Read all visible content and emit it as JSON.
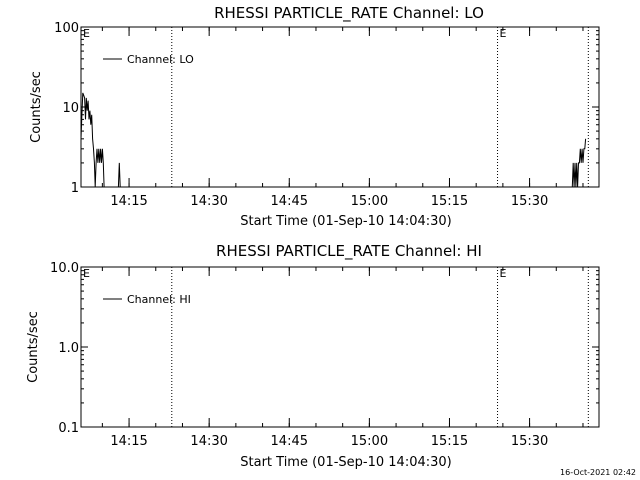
{
  "footer": {
    "timestamp": "16-Oct-2021 02:42"
  },
  "chart_data": [
    {
      "type": "line",
      "title": "RHESSI PARTICLE_RATE Channel: LO",
      "xlabel": "Start Time (01-Sep-10 14:04:30)",
      "ylabel": "Counts/sec",
      "yscale": "log",
      "ylim": [
        1,
        100
      ],
      "xlim": [
        "14:06:00",
        "15:43:00"
      ],
      "ytick_labels": [
        "1",
        "10",
        "100"
      ],
      "yticks": [
        1,
        10,
        100
      ],
      "xtick_labels": [
        "14:15",
        "14:30",
        "14:45",
        "15:00",
        "15:15",
        "15:30"
      ],
      "xticks": [
        "14:15",
        "14:30",
        "14:45",
        "15:00",
        "15:15",
        "15:30"
      ],
      "vlines": [
        "14:23:00",
        "15:24:00",
        "15:41:00"
      ],
      "flags": [
        {
          "label": "E",
          "time": "14:06:00"
        },
        {
          "label": "E",
          "time": "15:24:00"
        }
      ],
      "legend": {
        "label": "Channel: LO",
        "position": "top-left"
      },
      "series": [
        {
          "name": "Channel: LO",
          "segments": [
            {
              "x": [
                "14:06:00",
                "14:06:10",
                "14:06:20",
                "14:06:30",
                "14:06:40",
                "14:06:50",
                "14:07:00",
                "14:07:10",
                "14:07:20",
                "14:07:30",
                "14:07:40",
                "14:07:50",
                "14:08:00",
                "14:08:10",
                "14:08:20",
                "14:08:30",
                "14:08:40",
                "14:08:50",
                "14:09:00",
                "14:09:10",
                "14:09:20",
                "14:09:30",
                "14:09:40",
                "14:09:50",
                "14:10:00",
                "14:10:10",
                "14:10:20",
                "14:10:30",
                "14:10:40",
                "14:10:50",
                "14:11:00",
                "14:11:10",
                "14:11:20"
              ],
              "y": [
                4,
                8,
                15,
                14,
                13,
                7,
                13,
                9,
                12,
                7,
                9,
                6,
                8,
                4,
                3,
                2,
                1,
                2,
                3,
                2,
                3,
                2,
                3,
                2,
                3,
                2,
                1,
                1,
                1,
                1,
                1,
                1,
                1
              ]
            },
            {
              "x": [
                "14:13:00",
                "14:13:10",
                "14:13:20",
                "14:13:30"
              ],
              "y": [
                1,
                2,
                1,
                1
              ]
            },
            {
              "x": [
                "15:38:00",
                "15:38:10",
                "15:38:20",
                "15:38:30",
                "15:38:40",
                "15:38:50",
                "15:39:00",
                "15:39:10",
                "15:39:20",
                "15:39:30",
                "15:39:40",
                "15:39:50",
                "15:40:00",
                "15:40:10",
                "15:40:20",
                "15:40:30"
              ],
              "y": [
                1,
                2,
                1,
                2,
                1,
                2,
                1,
                2,
                2,
                3,
                2,
                3,
                2,
                3,
                3,
                4
              ]
            }
          ]
        }
      ]
    },
    {
      "type": "line",
      "title": "RHESSI PARTICLE_RATE Channel: HI",
      "xlabel": "Start Time (01-Sep-10 14:04:30)",
      "ylabel": "Counts/sec",
      "yscale": "log",
      "ylim": [
        0.1,
        10
      ],
      "xlim": [
        "14:06:00",
        "15:43:00"
      ],
      "ytick_labels": [
        "0.1",
        "1.0",
        "10.0"
      ],
      "yticks": [
        0.1,
        1,
        10
      ],
      "xtick_labels": [
        "14:15",
        "14:30",
        "14:45",
        "15:00",
        "15:15",
        "15:30"
      ],
      "xticks": [
        "14:15",
        "14:30",
        "14:45",
        "15:00",
        "15:15",
        "15:30"
      ],
      "vlines": [
        "14:23:00",
        "15:24:00",
        "15:41:00"
      ],
      "flags": [
        {
          "label": "E",
          "time": "14:06:00"
        },
        {
          "label": "E",
          "time": "15:24:00"
        }
      ],
      "legend": {
        "label": "Channel: HI",
        "position": "top-left"
      },
      "series": [
        {
          "name": "Channel: HI",
          "segments": []
        }
      ]
    }
  ]
}
